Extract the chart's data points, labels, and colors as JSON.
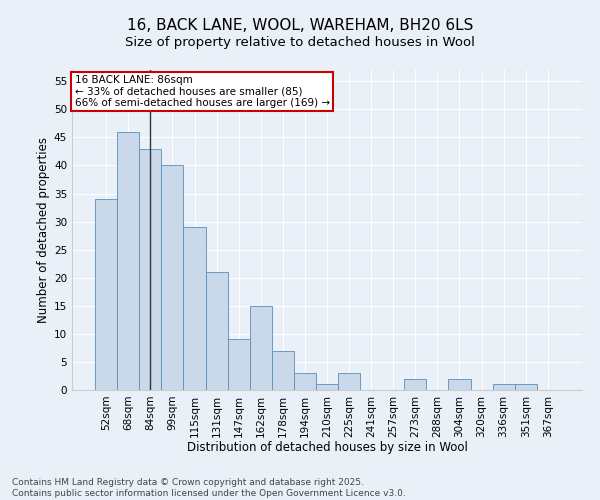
{
  "title1": "16, BACK LANE, WOOL, WAREHAM, BH20 6LS",
  "title2": "Size of property relative to detached houses in Wool",
  "xlabel": "Distribution of detached houses by size in Wool",
  "ylabel": "Number of detached properties",
  "categories": [
    "52sqm",
    "68sqm",
    "84sqm",
    "99sqm",
    "115sqm",
    "131sqm",
    "147sqm",
    "162sqm",
    "178sqm",
    "194sqm",
    "210sqm",
    "225sqm",
    "241sqm",
    "257sqm",
    "273sqm",
    "288sqm",
    "304sqm",
    "320sqm",
    "336sqm",
    "351sqm",
    "367sqm"
  ],
  "values": [
    34,
    46,
    43,
    40,
    29,
    21,
    9,
    15,
    7,
    3,
    1,
    3,
    0,
    0,
    2,
    0,
    2,
    0,
    1,
    1,
    0
  ],
  "bar_color": "#c9d9ea",
  "bar_edge_color": "#5b8db8",
  "background_color": "#eaf0f8",
  "grid_color": "#ffffff",
  "vline_x": 2,
  "vline_color": "#333333",
  "annotation_line1": "16 BACK LANE: 86sqm",
  "annotation_line2": "← 33% of detached houses are smaller (85)",
  "annotation_line3": "66% of semi-detached houses are larger (169) →",
  "annotation_box_color": "#cc0000",
  "ylim": [
    0,
    57
  ],
  "yticks": [
    0,
    5,
    10,
    15,
    20,
    25,
    30,
    35,
    40,
    45,
    50,
    55
  ],
  "footer_line1": "Contains HM Land Registry data © Crown copyright and database right 2025.",
  "footer_line2": "Contains public sector information licensed under the Open Government Licence v3.0.",
  "title_fontsize": 11,
  "subtitle_fontsize": 9.5,
  "axis_label_fontsize": 8.5,
  "tick_fontsize": 7.5,
  "annotation_fontsize": 7.5,
  "footer_fontsize": 6.5
}
